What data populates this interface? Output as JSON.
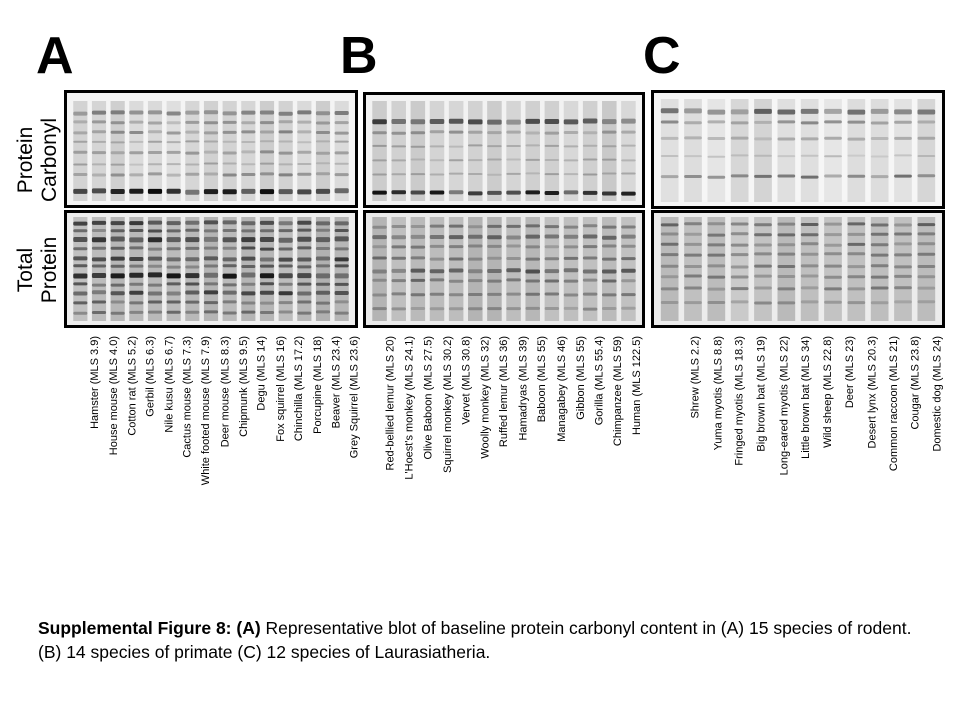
{
  "panels": {
    "a": {
      "letter": "A",
      "lanes": [
        "Hamster (MLS 3.9)",
        "House mouse (MLS 4.0)",
        "Cotton rat (MLS 5.2)",
        "Gerbil (MLS 6.3)",
        "Nile kusu (MLS 6.7)",
        "Cactus mouse (MLS 7.3)",
        "White footed mouse (MLS 7.9)",
        "Deer mouse (MLS 8.3)",
        "Chipmunk (MLS 9.5)",
        "Degu (MLS 14)",
        "Fox squirrel (MLS 16)",
        "Chinchilla (MLS 17.2)",
        "Porcupine (MLS 18)",
        "Beaver (MLS 23.4)",
        "Grey Squirrel (MLS 23.6)"
      ]
    },
    "b": {
      "letter": "B",
      "lanes": [
        "Red-bellied lemur (MLS 20)",
        "L'Hoest's monkey (MLS 24.1)",
        "Olive Baboon (MLS 27.5)",
        "Squirrel monkey (MLS 30.2)",
        "Vervet (MLS 30.8)",
        "Woolly monkey (MLS 32)",
        "Ruffed lemur (MLS 36)",
        "Hamadryas (MLS 39)",
        "Baboon (MLS 55)",
        "Managabey (MLS 46)",
        "Gibbon (MLS 55)",
        "Gorilla (MLS 55.4)",
        "Chimpanzee (MLS 59)",
        "Human (MLS 122.5)"
      ]
    },
    "c": {
      "letter": "C",
      "lanes": [
        "Shrew (MLS 2.2)",
        "Yuma myotis (MLS 8.8)",
        "Fringed myotis (MLS 18.3)",
        "Big brown bat (MLS 19)",
        "Long-eared myotis (MLS 22)",
        "Little brown bat (MLS 34)",
        "Wild sheep (MLS 22.8)",
        "Deer (MLS 23)",
        "Desert lynx (MLS 20.3)",
        "Common raccoon (MLS 21)",
        "Cougar (MLS 23.8)",
        "Domestic dog (MLS 24)"
      ]
    }
  },
  "row_labels": {
    "carbonyl": [
      "Protein",
      "Carbonyl"
    ],
    "total": [
      "Total",
      "Protein"
    ]
  },
  "caption": {
    "bold": "Supplemental Figure 8: (A)",
    "text": " Representative blot of baseline protein carbonyl content in (A) 15 species of  rodent. (B) 14 species of primate (C)  12 species of Laurasiatheria."
  }
}
